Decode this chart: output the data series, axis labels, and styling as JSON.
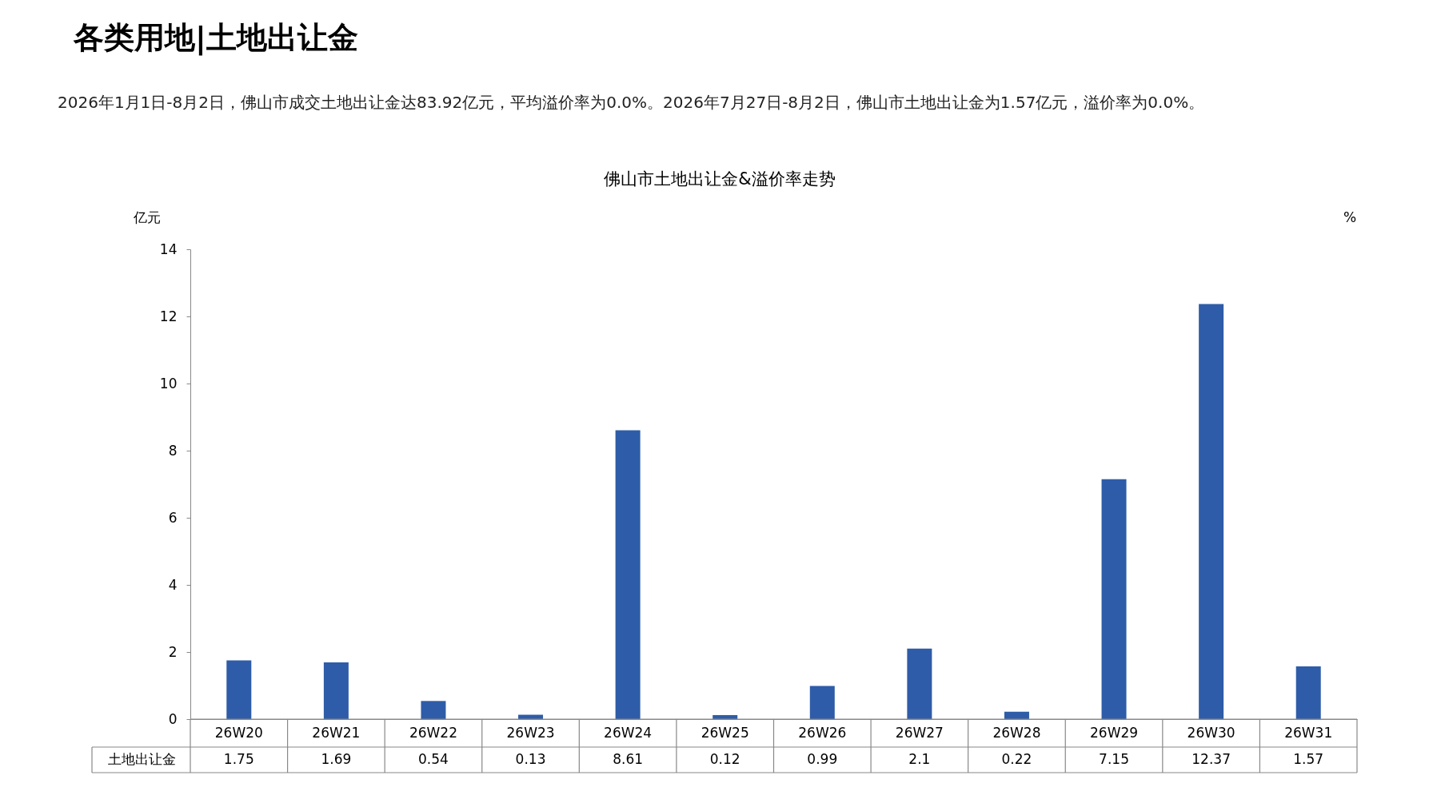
{
  "chart_data": {
    "type": "bar",
    "title": "各类用地|土地出让金",
    "subtitle": "佛山市土地出让金&溢价率走势",
    "annotations": [
      "2026年1月1日-8月2日，佛山市成交土地出让金达83.92亿元，平均溢价率为0.0%。2026年7月27日-8月2日，佛山市土地出让金为1.57亿元，溢价率为0.0%。"
    ],
    "ylabel": "亿元",
    "y2label": "%",
    "categories": [
      "26W20",
      "26W21",
      "26W22",
      "26W23",
      "26W24",
      "26W25",
      "26W26",
      "26W27",
      "26W28",
      "26W29",
      "26W30",
      "26W31"
    ],
    "series": [
      {
        "name": "土地出让金",
        "color": "#2e5ca8",
        "values": [
          1.75,
          1.69,
          0.54,
          0.13,
          8.61,
          0.12,
          0.99,
          2.1,
          0.22,
          7.15,
          12.37,
          1.57
        ]
      }
    ],
    "ylim": [
      0,
      14
    ],
    "yticks": [
      0,
      2,
      4,
      6,
      8,
      10,
      12,
      14
    ],
    "grid": false,
    "data_labels": true
  }
}
